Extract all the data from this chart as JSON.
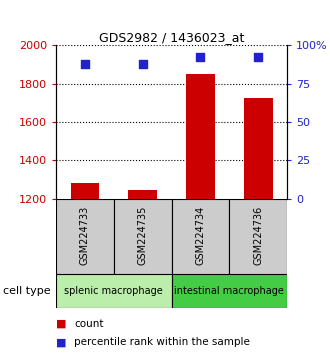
{
  "title": "GDS2982 / 1436023_at",
  "samples": [
    "GSM224733",
    "GSM224735",
    "GSM224734",
    "GSM224736"
  ],
  "counts": [
    1283,
    1248,
    1848,
    1725
  ],
  "percentiles": [
    88,
    88,
    92,
    92
  ],
  "ylim_left": [
    1200,
    2000
  ],
  "ylim_right": [
    0,
    100
  ],
  "yticks_left": [
    1200,
    1400,
    1600,
    1800,
    2000
  ],
  "yticks_right": [
    0,
    25,
    50,
    75,
    100
  ],
  "ytick_labels_right": [
    "0",
    "25",
    "50",
    "75",
    "100%"
  ],
  "bar_color": "#cc0000",
  "dot_color": "#2222cc",
  "cell_type_splenic_color": "#bbeeaa",
  "cell_type_intestinal_color": "#44cc44",
  "sample_box_color": "#cccccc",
  "legend_count_label": "count",
  "legend_pct_label": "percentile rank within the sample",
  "cell_type_label": "cell type"
}
